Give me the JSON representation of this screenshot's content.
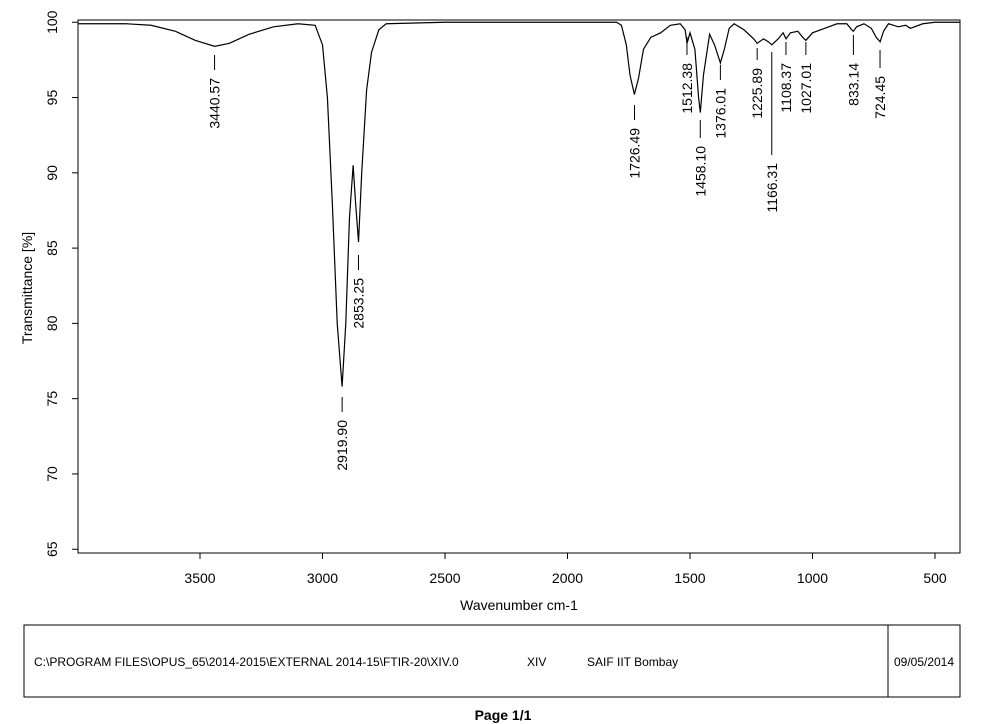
{
  "chart_data": {
    "type": "line",
    "xlabel": "Wavenumber cm-1",
    "ylabel": "Transmittance [%]",
    "xlim": [
      3998,
      398
    ],
    "ylim": [
      64.75,
      100.15
    ],
    "xticks": [
      3500,
      3000,
      2500,
      2000,
      1500,
      1000,
      500
    ],
    "yticks": [
      65,
      70,
      75,
      80,
      85,
      90,
      95,
      100
    ],
    "color": "#000000",
    "x": [
      3998,
      3800,
      3700,
      3600,
      3520,
      3440,
      3380,
      3300,
      3200,
      3100,
      3030,
      3000,
      2980,
      2960,
      2940,
      2920,
      2905,
      2890,
      2875,
      2865,
      2853,
      2840,
      2820,
      2800,
      2770,
      2740,
      2500,
      2000,
      1800,
      1780,
      1760,
      1745,
      1727,
      1710,
      1690,
      1660,
      1620,
      1580,
      1540,
      1520,
      1512,
      1500,
      1480,
      1465,
      1458,
      1445,
      1420,
      1400,
      1376,
      1360,
      1340,
      1320,
      1280,
      1240,
      1226,
      1200,
      1180,
      1166,
      1140,
      1120,
      1108,
      1090,
      1060,
      1040,
      1027,
      1000,
      950,
      900,
      860,
      840,
      833,
      820,
      790,
      760,
      740,
      724,
      710,
      690,
      650,
      620,
      600,
      550,
      500,
      398
    ],
    "series": [
      {
        "values": [
          99.9,
          99.9,
          99.8,
          99.4,
          98.8,
          98.4,
          98.6,
          99.2,
          99.7,
          99.9,
          99.8,
          98.5,
          95,
          88,
          80,
          75.8,
          80,
          87,
          90.5,
          88,
          85.4,
          90,
          95.5,
          98,
          99.5,
          99.9,
          100,
          100,
          100,
          99.8,
          98.5,
          96.5,
          95.2,
          96.3,
          98.2,
          99,
          99.3,
          99.8,
          99.9,
          99.5,
          98.6,
          99.3,
          98.2,
          95,
          94.0,
          96.5,
          99.2,
          98.5,
          97.3,
          98.2,
          99.6,
          99.9,
          99.5,
          98.9,
          98.6,
          98.9,
          98.7,
          98.5,
          98.9,
          99.3,
          98.9,
          99.3,
          99.4,
          99.0,
          98.8,
          99.3,
          99.6,
          99.9,
          99.9,
          99.5,
          99.4,
          99.7,
          99.9,
          99.6,
          99.0,
          98.7,
          99.4,
          99.9,
          99.7,
          99.8,
          99.6,
          99.9,
          100,
          100
        ]
      }
    ],
    "annotations": [
      {
        "label": "3440.57",
        "x": 3440.57
      },
      {
        "label": "2919.90",
        "x": 2919.9
      },
      {
        "label": "2853.25",
        "x": 2853.25
      },
      {
        "label": "1726.49",
        "x": 1726.49
      },
      {
        "label": "1512.38",
        "x": 1512.38
      },
      {
        "label": "1458.10",
        "x": 1458.1
      },
      {
        "label": "1376.01",
        "x": 1376.01
      },
      {
        "label": "1225.89",
        "x": 1225.89
      },
      {
        "label": "1166.31",
        "x": 1166.31
      },
      {
        "label": "1108.37",
        "x": 1108.37
      },
      {
        "label": "1027.01",
        "x": 1027.01
      },
      {
        "label": "833.14",
        "x": 833.14
      },
      {
        "label": "724.45",
        "x": 724.45
      }
    ]
  },
  "footer": {
    "path": "C:\\PROGRAM FILES\\OPUS_65\\2014-2015\\EXTERNAL 2014-15\\FTIR-20\\XIV.0",
    "sample": "XIV",
    "lab": "SAIF IIT Bombay",
    "date": "09/05/2014",
    "page": "Page 1/1"
  }
}
